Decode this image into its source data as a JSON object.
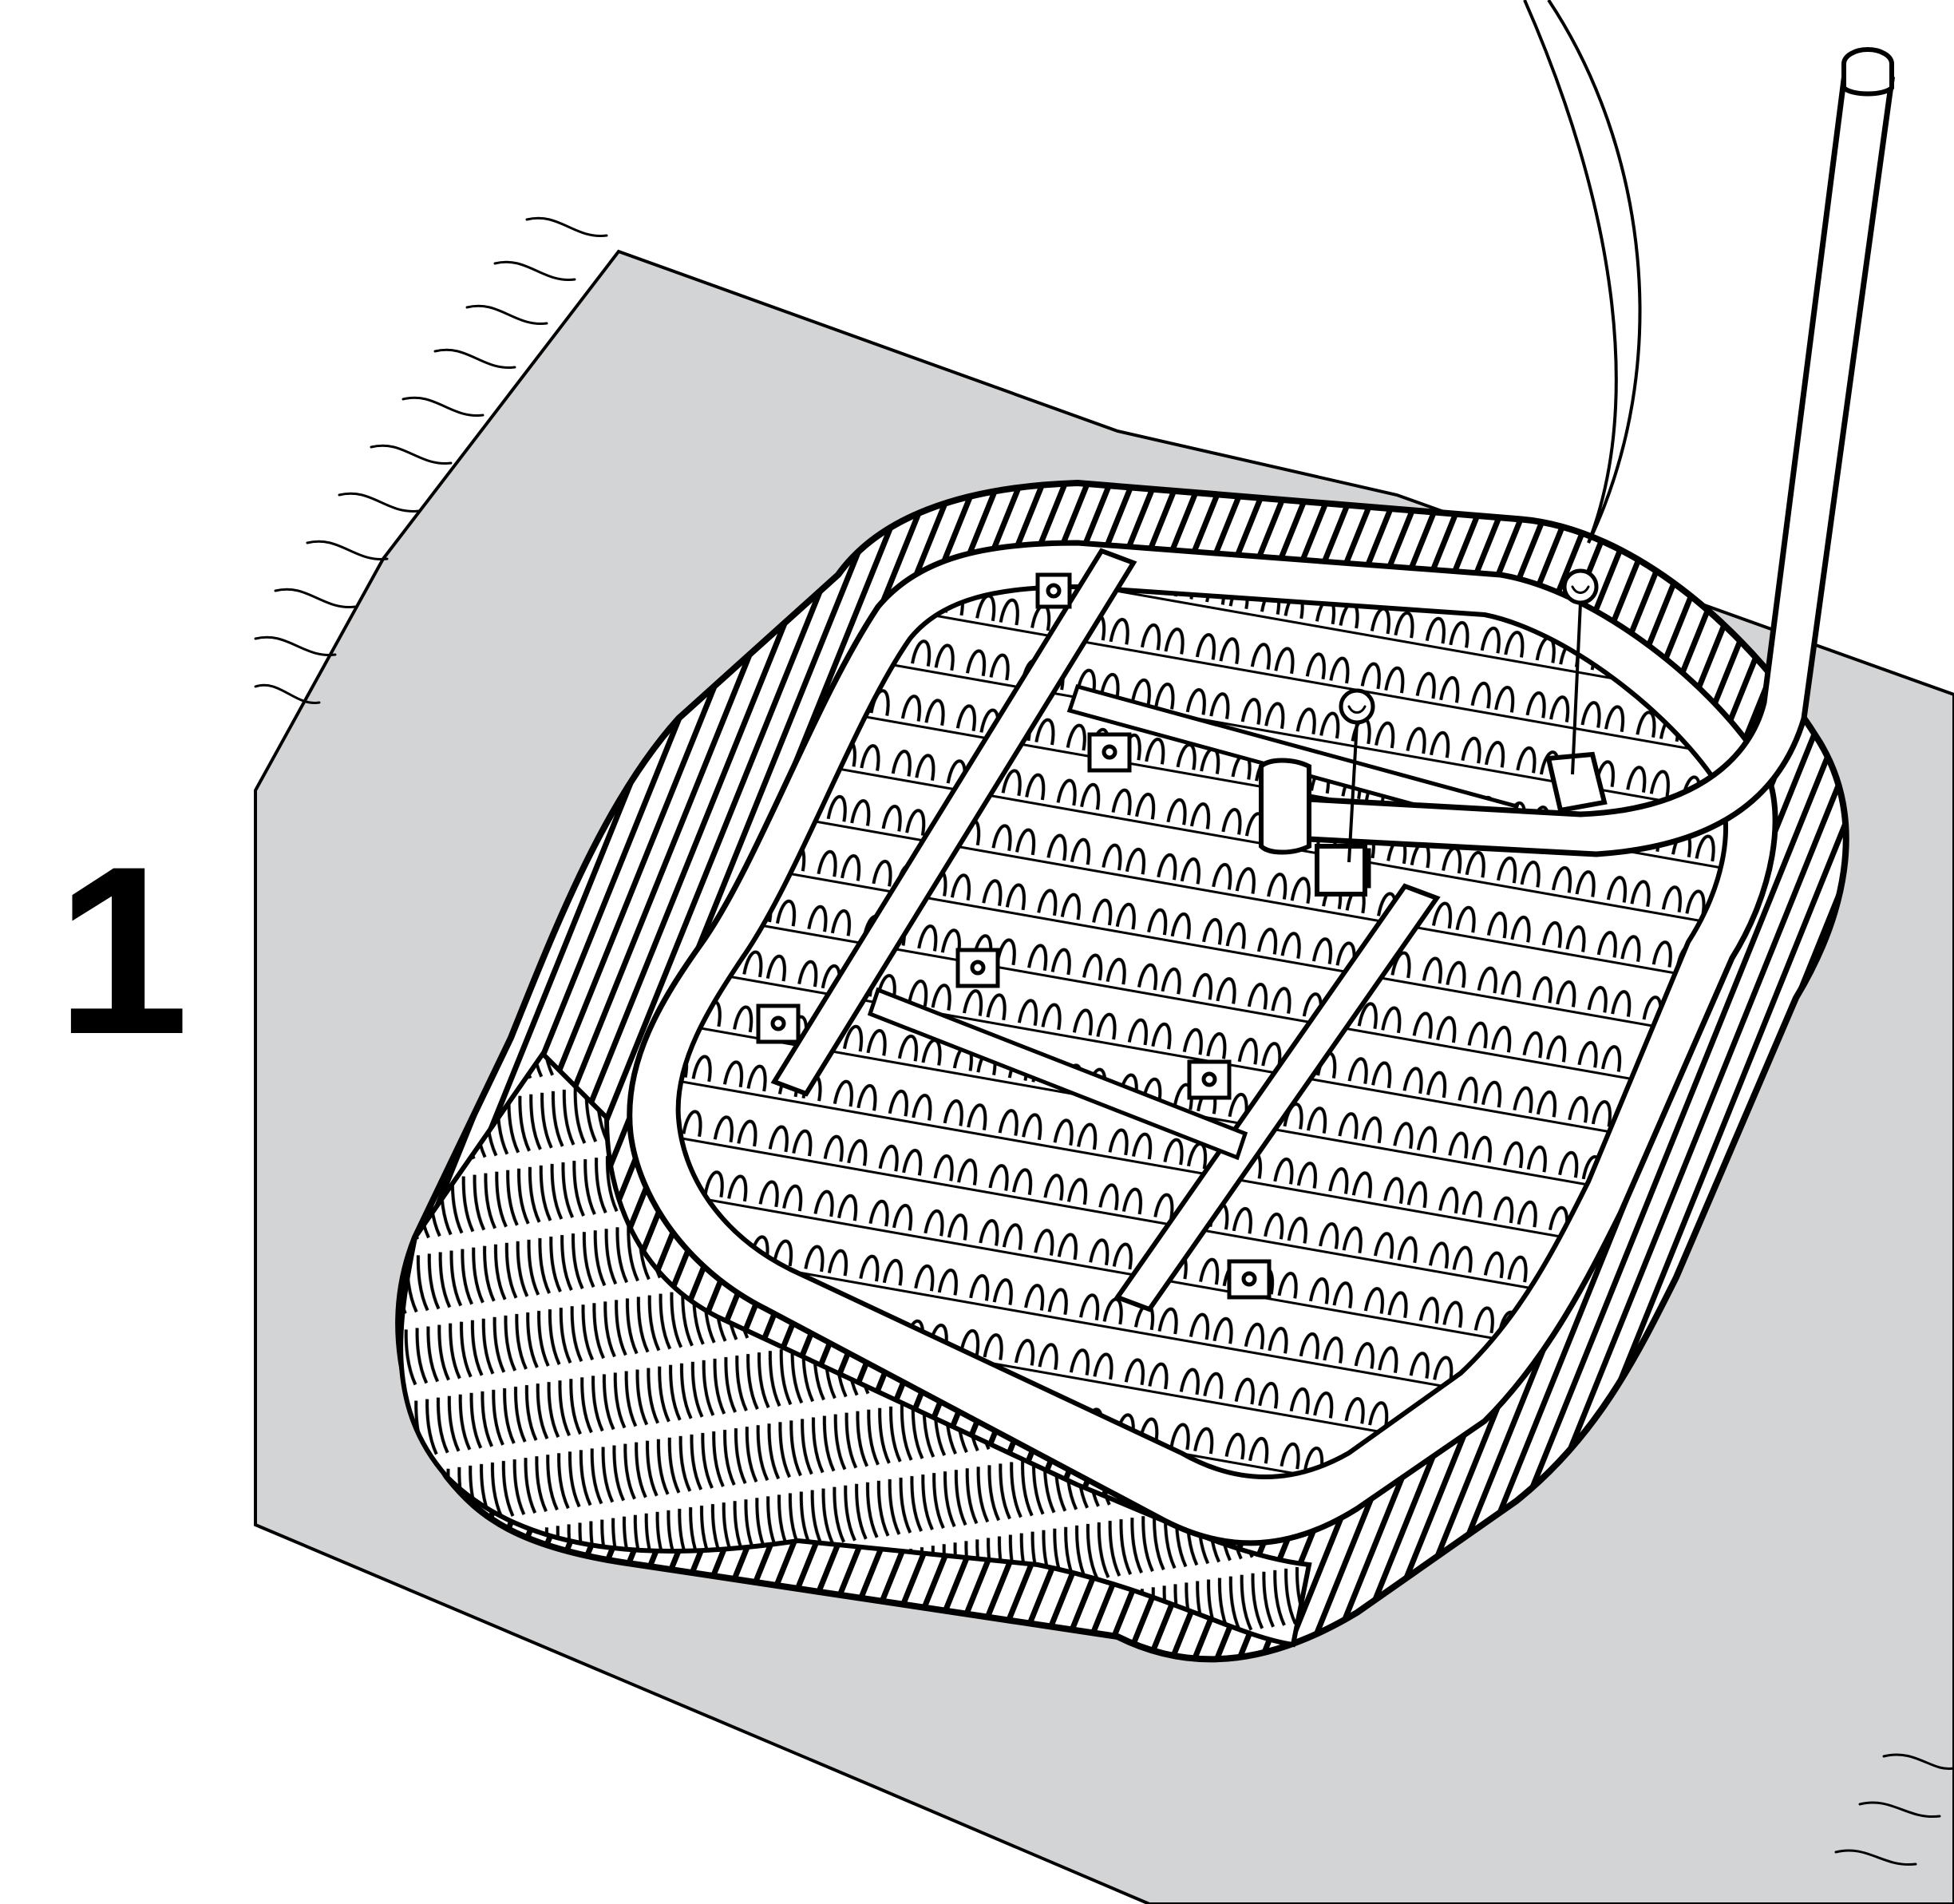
{
  "step": {
    "number": "1"
  },
  "colors": {
    "mat": "#d3d4d6",
    "ink": "#000000",
    "paper": "#ffffff"
  },
  "parts": {
    "seat": "wicker-seat-underside",
    "leg": "tubular-metal-leg",
    "screws": 2
  }
}
